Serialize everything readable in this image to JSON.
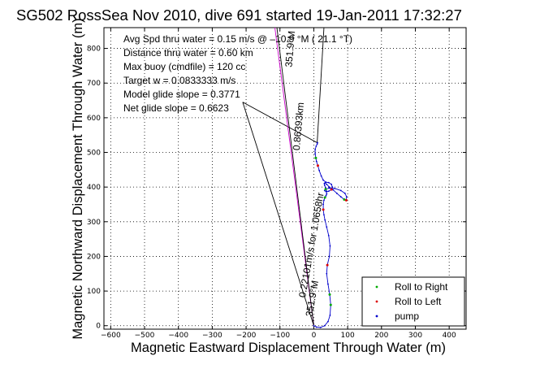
{
  "chart_data": {
    "type": "line",
    "title": "SG502 RossSea Nov 2010, dive 691 started 19-Jan-2011 17:32:27",
    "xlabel": "Magnetic Eastward Displacement Through Water (m)",
    "ylabel": "Magnetic Northward Displacement Through Water (m)",
    "xlim": [
      -620,
      450
    ],
    "ylim": [
      -10,
      860
    ],
    "xticks": [
      -600,
      -500,
      -400,
      -300,
      -200,
      -100,
      0,
      100,
      200,
      300,
      400
    ],
    "yticks": [
      0,
      100,
      200,
      300,
      400,
      500,
      600,
      700,
      800
    ],
    "grid": true,
    "legend_position": "bottom-right",
    "annotations": [
      "Avg Spd thru water =  0.15 m/s @ –10.9   °M ( 21.1 °T)",
      "Distance thru water =  0.60 km",
      "Max buoy (cmdfile) = 120 cc",
      "Target w = 0.0833333 m/s",
      "Model glide slope = 0.3771",
      "Net glide slope = 0.6623"
    ],
    "line_labels": [
      {
        "text": "0.86393km",
        "angle": -85
      },
      {
        "text": "351.9°M",
        "angle": -85
      },
      {
        "text": "0.22101m/s for 1.0658hr",
        "angle": -80
      },
      {
        "text": "351.9°M",
        "angle": -80
      }
    ],
    "series": [
      {
        "name": "pump",
        "color": "#0000cc",
        "x": [
          0,
          8,
          20,
          32,
          42,
          48,
          50,
          47,
          42,
          38,
          40,
          46,
          48,
          44,
          38,
          33,
          30,
          28,
          28,
          30,
          33,
          36,
          38,
          38,
          35,
          32,
          31,
          33,
          38,
          46,
          57,
          68,
          80,
          90,
          96,
          97,
          92,
          80,
          62,
          45,
          35,
          32,
          36,
          44,
          52,
          55,
          52,
          44,
          36,
          28,
          22,
          16,
          12,
          8,
          6,
          4,
          4,
          7,
          10,
          11
        ],
        "y": [
          0,
          -4,
          -5,
          0,
          12,
          30,
          60,
          90,
          120,
          150,
          175,
          200,
          230,
          260,
          285,
          305,
          320,
          335,
          350,
          362,
          370,
          375,
          380,
          388,
          398,
          405,
          410,
          412,
          408,
          400,
          392,
          382,
          372,
          364,
          362,
          372,
          382,
          390,
          396,
          397,
          394,
          390,
          387,
          388,
          393,
          400,
          408,
          413,
          414,
          420,
          432,
          448,
          462,
          474,
          484,
          496,
          508,
          518,
          524,
          528
        ]
      },
      {
        "name": "Roll to Right",
        "color": "#00aa00",
        "x": [
          50,
          47,
          33,
          90,
          35,
          6
        ],
        "y": [
          60,
          90,
          370,
          364,
          394,
          484
        ]
      },
      {
        "name": "Roll to Left",
        "color": "#dd0000",
        "x": [
          40,
          28,
          96,
          52,
          12
        ],
        "y": [
          175,
          335,
          362,
          393,
          462
        ]
      }
    ],
    "reference_lines": [
      {
        "from": [
          0,
          0
        ],
        "to": [
          -210,
          645
        ],
        "color": "#000000"
      },
      {
        "from": [
          -210,
          645
        ],
        "to": [
          10,
          528
        ],
        "color": "#000000"
      },
      {
        "from": [
          0,
          0
        ],
        "to": [
          -115,
          860
        ],
        "color": "#cc00cc"
      },
      {
        "from": [
          0,
          0
        ],
        "to": [
          -109,
          860
        ],
        "color": "#000000"
      },
      {
        "from": [
          10,
          528
        ],
        "to": [
          30,
          860
        ],
        "color": "#000000"
      }
    ]
  }
}
